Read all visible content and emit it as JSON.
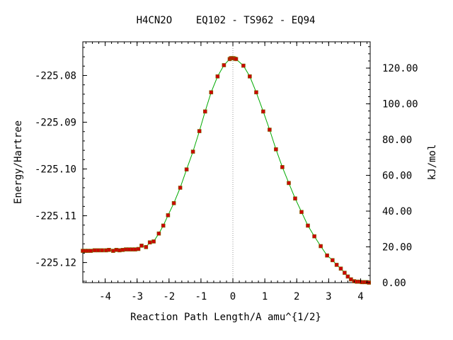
{
  "chart_data": {
    "type": "line",
    "title": "H4CN2O    EQ102 - TS962 - EQ94",
    "xlabel": "Reaction Path Length/A amu^{1/2}",
    "ylabel": "Energy/Hartree",
    "y2label": "kJ/mol",
    "xlim": [
      -4.7,
      4.3
    ],
    "ylim": [
      -225.1243,
      -225.0728
    ],
    "y2lim": [
      0,
      134.7
    ],
    "x_ticks": [
      -4,
      -3,
      -2,
      -1,
      0,
      1,
      2,
      3,
      4
    ],
    "x_tick_labels": [
      "-4",
      "-3",
      "-2",
      "-1",
      "0",
      "1",
      "2",
      "3",
      "4"
    ],
    "y_ticks": [
      -225.08,
      -225.09,
      -225.1,
      -225.11,
      -225.12
    ],
    "y_tick_labels": [
      "-225.08",
      "-225.09",
      "-225.10",
      "-225.11",
      "-225.12"
    ],
    "y2_ticks": [
      0,
      20,
      40,
      60,
      80,
      100,
      120
    ],
    "y2_tick_labels": [
      "0.00",
      "20.00",
      "40.00",
      "60.00",
      "80.00",
      "100.00",
      "120.00"
    ],
    "ts_marker_x": 0,
    "grid": false,
    "line_color": "#00aa00",
    "marker_color": "#cc0000",
    "marker_edge_color": "#7a6a00",
    "marker_line_color": "#999999",
    "points": [
      [
        -4.7,
        -225.1175
      ],
      [
        -4.62,
        -225.1175
      ],
      [
        -4.55,
        -225.1175
      ],
      [
        -4.45,
        -225.1175
      ],
      [
        -4.33,
        -225.1174
      ],
      [
        -4.22,
        -225.1174
      ],
      [
        -4.1,
        -225.1174
      ],
      [
        -3.97,
        -225.1174
      ],
      [
        -3.88,
        -225.1173
      ],
      [
        -3.75,
        -225.1175
      ],
      [
        -3.65,
        -225.1173
      ],
      [
        -3.55,
        -225.1174
      ],
      [
        -3.45,
        -225.1173
      ],
      [
        -3.35,
        -225.1172
      ],
      [
        -3.25,
        -225.1172
      ],
      [
        -3.15,
        -225.1172
      ],
      [
        -3.06,
        -225.1172
      ],
      [
        -2.96,
        -225.1171
      ],
      [
        -2.86,
        -225.1164
      ],
      [
        -2.72,
        -225.1167
      ],
      [
        -2.6,
        -225.1157
      ],
      [
        -2.48,
        -225.1155
      ],
      [
        -2.32,
        -225.1138
      ],
      [
        -2.18,
        -225.1121
      ],
      [
        -2.03,
        -225.1099
      ],
      [
        -1.85,
        -225.1073
      ],
      [
        -1.65,
        -225.104
      ],
      [
        -1.45,
        -225.1001
      ],
      [
        -1.25,
        -225.0963
      ],
      [
        -1.05,
        -225.0919
      ],
      [
        -0.87,
        -225.0877
      ],
      [
        -0.68,
        -225.0836
      ],
      [
        -0.48,
        -225.0802
      ],
      [
        -0.28,
        -225.0778
      ],
      [
        -0.1,
        -225.0765
      ],
      [
        -0.06,
        -225.0763
      ],
      [
        -0.02,
        -225.0763
      ],
      [
        0.02,
        -225.0763
      ],
      [
        0.06,
        -225.0764
      ],
      [
        0.1,
        -225.0765
      ],
      [
        0.33,
        -225.0779
      ],
      [
        0.53,
        -225.0802
      ],
      [
        0.73,
        -225.0836
      ],
      [
        0.95,
        -225.0877
      ],
      [
        1.15,
        -225.0916
      ],
      [
        1.35,
        -225.0958
      ],
      [
        1.55,
        -225.0996
      ],
      [
        1.75,
        -225.103
      ],
      [
        1.95,
        -225.1063
      ],
      [
        2.15,
        -225.1092
      ],
      [
        2.35,
        -225.1121
      ],
      [
        2.55,
        -225.1144
      ],
      [
        2.75,
        -225.1165
      ],
      [
        2.95,
        -225.1185
      ],
      [
        3.12,
        -225.1195
      ],
      [
        3.25,
        -225.1205
      ],
      [
        3.38,
        -225.1213
      ],
      [
        3.5,
        -225.1222
      ],
      [
        3.6,
        -225.123
      ],
      [
        3.7,
        -225.1236
      ],
      [
        3.8,
        -225.124
      ],
      [
        3.88,
        -225.1241
      ],
      [
        3.96,
        -225.1241
      ],
      [
        4.04,
        -225.1242
      ],
      [
        4.12,
        -225.1242
      ],
      [
        4.2,
        -225.1242
      ],
      [
        4.26,
        -225.1243
      ]
    ]
  }
}
